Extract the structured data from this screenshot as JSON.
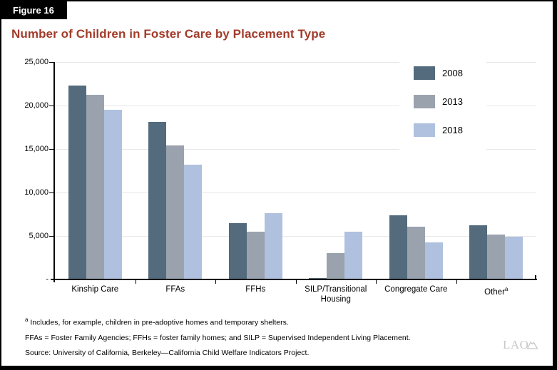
{
  "figure_label": "Figure 16",
  "title": "Number of Children in Foster Care by Placement Type",
  "colors": {
    "title_red": "#a23b2a",
    "series_2008": "#536b7d",
    "series_2013": "#9aa3ad",
    "series_2018": "#afc1de",
    "gridline": "#e8e8e8",
    "axis": "#000000",
    "logo_gray": "#c7c7c7"
  },
  "chart_data": {
    "type": "bar",
    "categories": [
      "Kinship Care",
      "FFAs",
      "FFHs",
      "SILP/Transitional Housing",
      "Congregate Care",
      "Other"
    ],
    "categories_display": [
      {
        "lines": [
          "Kinship Care"
        ],
        "superscript": ""
      },
      {
        "lines": [
          "FFAs"
        ],
        "superscript": ""
      },
      {
        "lines": [
          "FFHs"
        ],
        "superscript": ""
      },
      {
        "lines": [
          "SILP/Transitional",
          "Housing"
        ],
        "superscript": ""
      },
      {
        "lines": [
          "Congregate Care"
        ],
        "superscript": ""
      },
      {
        "lines": [
          "Other"
        ],
        "superscript": "a"
      }
    ],
    "series": [
      {
        "name": "2008",
        "color": "#536b7d",
        "values": [
          22300,
          18100,
          6500,
          200,
          7400,
          6200
        ]
      },
      {
        "name": "2013",
        "color": "#9aa3ad",
        "values": [
          21200,
          15400,
          5500,
          3000,
          6100,
          5200
        ]
      },
      {
        "name": "2018",
        "color": "#afc1de",
        "values": [
          19500,
          13200,
          7600,
          5500,
          4300,
          4900
        ]
      }
    ],
    "title": "Number of Children in Foster Care by Placement Type",
    "xlabel": "",
    "ylabel": "",
    "ylim": [
      0,
      25000
    ],
    "ytick_interval": 5000,
    "ytick_labels": [
      "-",
      "5,000",
      "10,000",
      "15,000",
      "20,000",
      "25,000"
    ],
    "grid": true,
    "legend_position": "top-right",
    "legend_entries": [
      "2008",
      "2013",
      "2018"
    ]
  },
  "footnotes": [
    {
      "superscript": "a",
      "text": "Includes, for example, children in pre-adoptive homes and temporary shelters."
    },
    {
      "superscript": "",
      "text": "FFAs = Foster Family Agencies; FFHs = foster family homes; and SILP = Supervised Independent Living Placement."
    },
    {
      "superscript": "",
      "text": "Source: University of California, Berkeley—California Child Welfare Indicators Project."
    }
  ],
  "logo": {
    "text": "LAO"
  }
}
